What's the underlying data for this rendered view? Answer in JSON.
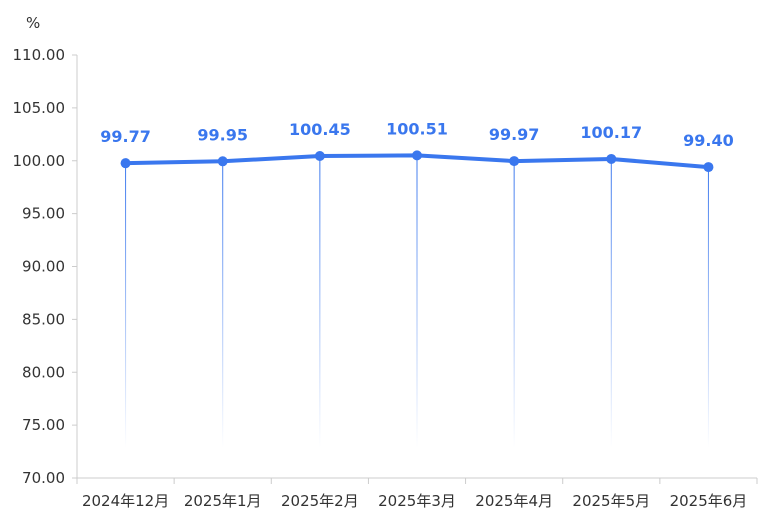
{
  "chart_data": {
    "type": "line",
    "title": "",
    "xlabel": "",
    "ylabel": "%",
    "categories": [
      "2024年12月",
      "2025年1月",
      "2025年2月",
      "2025年3月",
      "2025年4月",
      "2025年5月",
      "2025年6月"
    ],
    "series": [
      {
        "values": [
          99.77,
          99.95,
          100.45,
          100.51,
          99.97,
          100.17,
          99.4
        ],
        "labels": [
          "99.77",
          "99.95",
          "100.45",
          "100.51",
          "99.97",
          "100.17",
          "99.40"
        ]
      }
    ],
    "ylim": [
      70,
      110
    ],
    "yticks": [
      "70.00",
      "75.00",
      "80.00",
      "85.00",
      "90.00",
      "95.00",
      "100.00",
      "105.00",
      "110.00"
    ],
    "grid": false,
    "legend": "none",
    "colors": {
      "line": "#3a77ee",
      "label": "#3a77ee",
      "axis": "#cccccc",
      "text": "#333333"
    }
  }
}
